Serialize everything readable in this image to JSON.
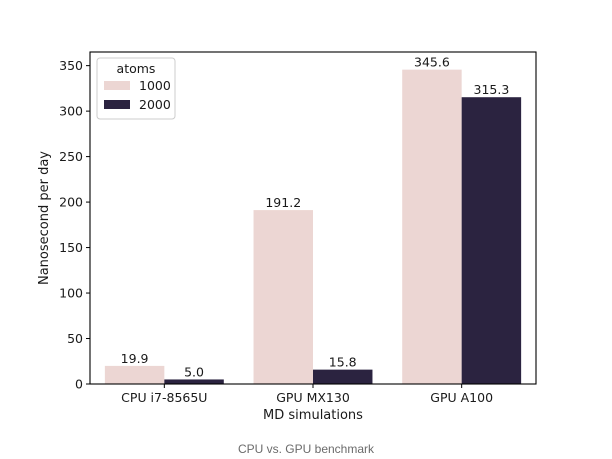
{
  "chart_data": {
    "type": "bar",
    "categories": [
      "CPU i7-8565U",
      "GPU MX130",
      "GPU A100"
    ],
    "series": [
      {
        "name": "1000",
        "values": [
          19.9,
          191.2,
          345.6
        ],
        "labels": [
          "19.9",
          "191.2",
          "345.6"
        ],
        "color": "#ecd6d3"
      },
      {
        "name": "2000",
        "values": [
          5.0,
          15.8,
          315.3
        ],
        "labels": [
          "5.0",
          "15.8",
          "315.3"
        ],
        "color": "#2b2340"
      }
    ],
    "xlabel": "MD simulations",
    "ylabel": "Nanosecond per day",
    "ylim": [
      0,
      365
    ],
    "yticks": [
      0,
      50,
      100,
      150,
      200,
      250,
      300,
      350
    ],
    "legend": {
      "title": "atoms",
      "placement": "top-left"
    },
    "grid": false
  },
  "caption": "CPU vs. GPU benchmark"
}
